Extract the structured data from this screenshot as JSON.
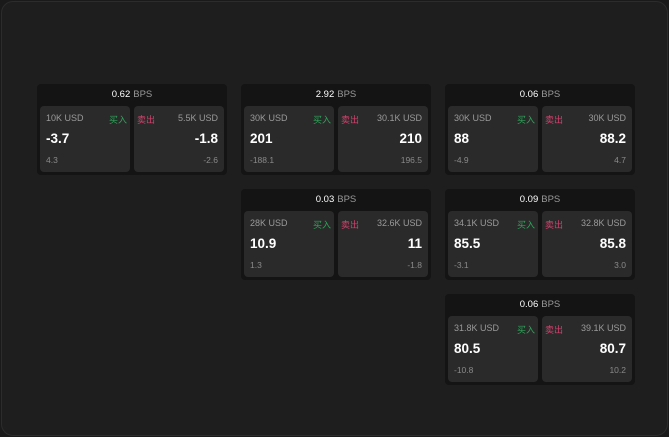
{
  "colors": {
    "buy": "#2fa35a",
    "sell": "#d2416e",
    "background": "#1e1e1e"
  },
  "labels": {
    "buy": "买入",
    "sell": "卖出",
    "unit": "BPS"
  },
  "cards": [
    {
      "bps": "0.62",
      "buy": {
        "size": "10K USD",
        "price": "-3.7",
        "change": "4.3"
      },
      "sell": {
        "size": "5.5K USD",
        "price": "-1.8",
        "change": "-2.6"
      }
    },
    {
      "bps": "2.92",
      "buy": {
        "size": "30K USD",
        "price": "201",
        "change": "-188.1"
      },
      "sell": {
        "size": "30.1K USD",
        "price": "210",
        "change": "196.5"
      }
    },
    {
      "bps": "0.06",
      "buy": {
        "size": "30K USD",
        "price": "88",
        "change": "-4.9"
      },
      "sell": {
        "size": "30K USD",
        "price": "88.2",
        "change": "4.7"
      }
    },
    {
      "bps": "0.03",
      "buy": {
        "size": "28K USD",
        "price": "10.9",
        "change": "1.3"
      },
      "sell": {
        "size": "32.6K USD",
        "price": "11",
        "change": "-1.8"
      }
    },
    {
      "bps": "0.09",
      "buy": {
        "size": "34.1K USD",
        "price": "85.5",
        "change": "-3.1"
      },
      "sell": {
        "size": "32.8K USD",
        "price": "85.8",
        "change": "3.0"
      }
    },
    {
      "bps": "0.06",
      "buy": {
        "size": "31.8K USD",
        "price": "80.5",
        "change": "-10.8"
      },
      "sell": {
        "size": "39.1K USD",
        "price": "80.7",
        "change": "10.2"
      }
    }
  ]
}
